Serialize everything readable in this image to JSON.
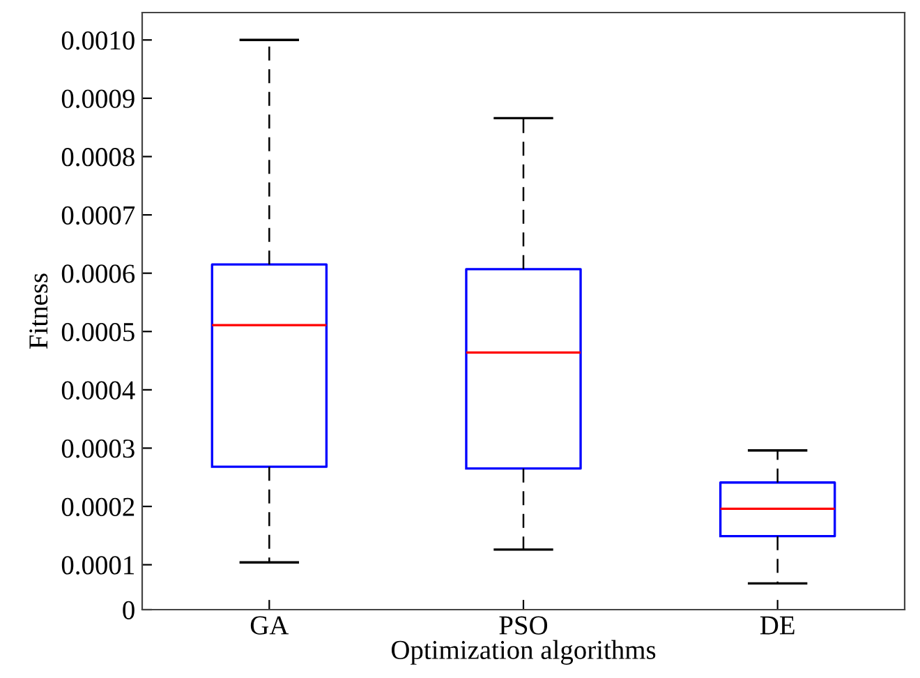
{
  "chart_data": {
    "type": "box",
    "xlabel": "Optimization algorithms",
    "ylabel": "Fitness",
    "categories": [
      "GA",
      "PSO",
      "DE"
    ],
    "boxes": [
      {
        "low": 0.000104,
        "q1": 0.000268,
        "median": 0.000511,
        "q3": 0.000615,
        "high": 0.001
      },
      {
        "low": 0.000126,
        "q1": 0.000265,
        "median": 0.000464,
        "q3": 0.000607,
        "high": 0.000866
      },
      {
        "low": 6.8e-05,
        "q1": 0.000149,
        "median": 0.000196,
        "q3": 0.000241,
        "high": 0.000296
      }
    ],
    "color": "#0000ff",
    "ylim": [
      2.3e-05,
      0.001047
    ],
    "yticks": [
      {
        "value": 2.3e-05,
        "label": "0"
      },
      {
        "value": 0.0001,
        "label": "0.0001"
      },
      {
        "value": 0.0002,
        "label": "0.0002"
      },
      {
        "value": 0.0003,
        "label": "0.0003"
      },
      {
        "value": 0.0004,
        "label": "0.0004"
      },
      {
        "value": 0.0005,
        "label": "0.0005"
      },
      {
        "value": 0.0006,
        "label": "0.0006"
      },
      {
        "value": 0.0007,
        "label": "0.0007"
      },
      {
        "value": 0.0008,
        "label": "0.0008"
      },
      {
        "value": 0.0009,
        "label": "0.0009"
      },
      {
        "value": 0.001,
        "label": "0.0010"
      }
    ],
    "grid": false,
    "legend": false
  }
}
